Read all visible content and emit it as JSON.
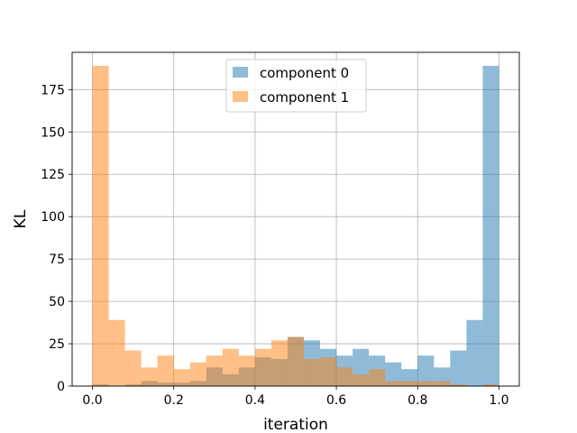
{
  "chart_data": {
    "type": "bar",
    "subtype": "overlapping-histogram",
    "title": "",
    "xlabel": "iteration",
    "ylabel": "KL",
    "xlim": [
      -0.05,
      1.05
    ],
    "ylim": [
      0,
      197
    ],
    "xticks": [
      "0.0",
      "0.2",
      "0.4",
      "0.6",
      "0.8",
      "1.0"
    ],
    "yticks": [
      "0",
      "25",
      "50",
      "75",
      "100",
      "125",
      "150",
      "175"
    ],
    "grid": true,
    "legend_position": "top-center",
    "bin_edges": [
      0.0,
      0.04,
      0.08,
      0.12,
      0.16,
      0.2,
      0.24,
      0.28,
      0.32,
      0.36,
      0.4,
      0.44,
      0.48,
      0.52,
      0.56,
      0.6,
      0.64,
      0.68,
      0.72,
      0.76,
      0.8,
      0.84,
      0.88,
      0.92,
      0.96,
      1.0
    ],
    "series": [
      {
        "name": "component 0",
        "color": "#1f77b4",
        "alpha": 0.5,
        "values": [
          1,
          0,
          1,
          3,
          2,
          2,
          3,
          11,
          7,
          11,
          17,
          16,
          29,
          27,
          22,
          18,
          22,
          18,
          14,
          10,
          18,
          11,
          21,
          39,
          189
        ]
      },
      {
        "name": "component 1",
        "color": "#ff7f0e",
        "alpha": 0.5,
        "values": [
          189,
          39,
          21,
          11,
          18,
          10,
          14,
          18,
          22,
          18,
          22,
          27,
          29,
          16,
          17,
          11,
          7,
          10,
          3,
          3,
          3,
          3,
          1,
          0,
          1
        ]
      }
    ]
  }
}
